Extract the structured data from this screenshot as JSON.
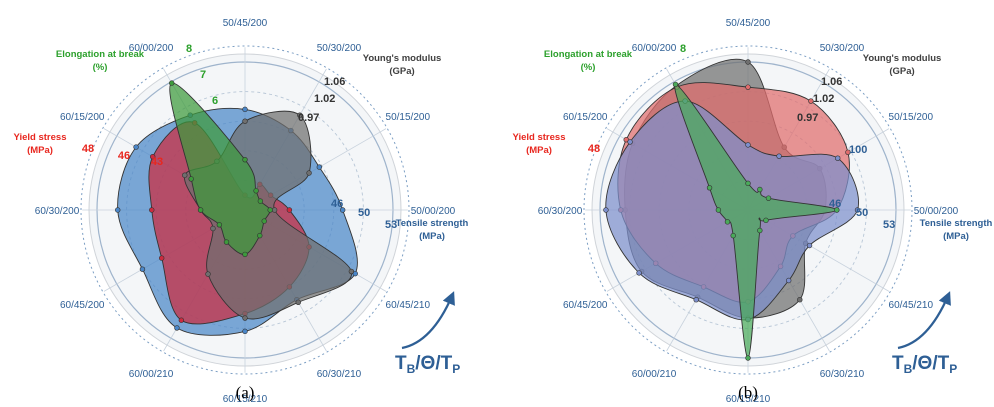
{
  "spokes": [
    "50/00/200",
    "50/15/200",
    "50/30/200",
    "50/45/200",
    "60/00/200",
    "60/15/200",
    "60/30/200",
    "60/45/200",
    "60/00/210",
    "60/15/210",
    "60/30/210",
    "60/45/210"
  ],
  "metrics": {
    "elongation": {
      "title": [
        "Elongation at break",
        "(%)"
      ],
      "color": "#2ca02c",
      "ticks": [
        "8",
        "7",
        "6"
      ]
    },
    "yield": {
      "title": [
        "Yield stress",
        "(MPa)"
      ],
      "color": "#e8271f",
      "ticks_a": [
        "48",
        "46",
        "43"
      ],
      "ticks_b": [
        "48"
      ]
    },
    "modulus": {
      "title": [
        "Young's modulus",
        "(GPa)"
      ],
      "color": "#404040",
      "ticks": [
        "1.06",
        "1.02",
        "0.97"
      ]
    },
    "tensile": {
      "title_a": [
        "Tensile strength",
        "(MPa)"
      ],
      "title_b": [
        "Tensile strength",
        "(MPa)"
      ],
      "color": "#2e5f95",
      "ticks_a": [
        "46",
        "50",
        "53"
      ],
      "ticks_b": [
        "46",
        "50",
        "53"
      ],
      "tick_b_inner": "100"
    }
  },
  "process_label": {
    "main": "T",
    "sub1": "B",
    "slash1": "/Θ/T",
    "sub2": "P"
  },
  "panels": [
    "(a)",
    "(b)"
  ],
  "chart_data": [
    {
      "type": "radar",
      "panel": "(a)",
      "axes": [
        "50/00/200",
        "50/15/200",
        "50/30/200",
        "50/45/200",
        "60/00/200",
        "60/15/200",
        "60/30/200",
        "60/45/200",
        "60/00/210",
        "60/15/210",
        "60/30/210",
        "60/45/210"
      ],
      "radius_scale": "relative, 0 = centre, 1 = outer ring",
      "series": [
        {
          "name": "Tensile strength",
          "color": "#4a86c8",
          "values": [
            0.66,
            0.58,
            0.62,
            0.68,
            0.74,
            0.85,
            0.86,
            0.8,
            0.92,
            0.82,
            0.7,
            0.86
          ]
        },
        {
          "name": "Yield stress",
          "color": "#cc2b3f",
          "values": [
            0.3,
            0.2,
            0.2,
            0.1,
            0.68,
            0.72,
            0.63,
            0.65,
            0.86,
            0.7,
            0.6,
            0.5
          ]
        },
        {
          "name": "Young's modulus",
          "color": "#6f6f6f",
          "values": [
            0.2,
            0.5,
            0.74,
            0.6,
            0.38,
            0.47,
            0.3,
            0.25,
            0.5,
            0.73,
            0.72,
            0.83
          ]
        },
        {
          "name": "Elongation at break",
          "color": "#3d9a3c",
          "values": [
            0.17,
            0.12,
            0.15,
            0.34,
            0.99,
            0.42,
            0.3,
            0.2,
            0.25,
            0.3,
            0.2,
            0.15
          ]
        }
      ]
    },
    {
      "type": "radar",
      "panel": "(b)",
      "axes": [
        "50/00/200",
        "50/15/200",
        "50/30/200",
        "50/45/200",
        "60/00/200",
        "60/15/200",
        "60/30/200",
        "60/45/200",
        "60/00/210",
        "60/15/210",
        "60/30/210",
        "60/45/210"
      ],
      "radius_scale": "relative, 0 = centre, 1 = outer ring",
      "series": [
        {
          "name": "Young's modulus",
          "color": "#6f6f6f",
          "values": [
            0.52,
            0.56,
            0.49,
            1.0,
            0.97,
            0.9,
            0.83,
            0.83,
            0.68,
            0.73,
            0.7,
            0.45
          ]
        },
        {
          "name": "Yield stress",
          "color": "#e06c6c",
          "values": [
            0.6,
            0.78,
            0.85,
            0.83,
            0.96,
            0.95,
            0.86,
            0.72,
            0.6,
            0.62,
            0.44,
            0.35
          ]
        },
        {
          "name": "Tensile strength",
          "color": "#7d8fcc",
          "values": [
            0.74,
            0.7,
            0.42,
            0.44,
            0.85,
            0.92,
            0.96,
            0.85,
            0.7,
            0.74,
            0.55,
            0.48
          ]
        },
        {
          "name": "Elongation at break",
          "color": "#4aaa5a",
          "values": [
            0.6,
            0.16,
            0.16,
            0.18,
            0.98,
            0.3,
            0.2,
            0.16,
            0.2,
            1.0,
            0.16,
            0.14
          ]
        }
      ]
    }
  ]
}
